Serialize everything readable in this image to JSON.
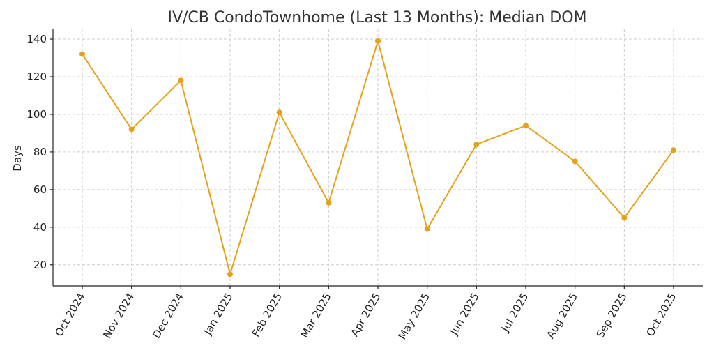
{
  "chart_data": {
    "type": "line",
    "title": "IV/CB CondoTownhome (Last 13 Months): Median DOM",
    "xlabel": "",
    "ylabel": "Days",
    "categories": [
      "Oct 2024",
      "Nov 2024",
      "Dec 2024",
      "Jan 2025",
      "Feb 2025",
      "Mar 2025",
      "Apr 2025",
      "May 2025",
      "Jun 2025",
      "Jul 2025",
      "Aug 2025",
      "Sep 2025",
      "Oct 2025"
    ],
    "series": [
      {
        "values": [
          132,
          92,
          118,
          15,
          101,
          53,
          139,
          39,
          84,
          94,
          75,
          45,
          81
        ],
        "color": "#E3A21A"
      }
    ],
    "ylim": [
      8.8,
      145.2
    ],
    "yticks": [
      20,
      40,
      60,
      80,
      100,
      120,
      140
    ],
    "grid": true,
    "legend": "none"
  }
}
